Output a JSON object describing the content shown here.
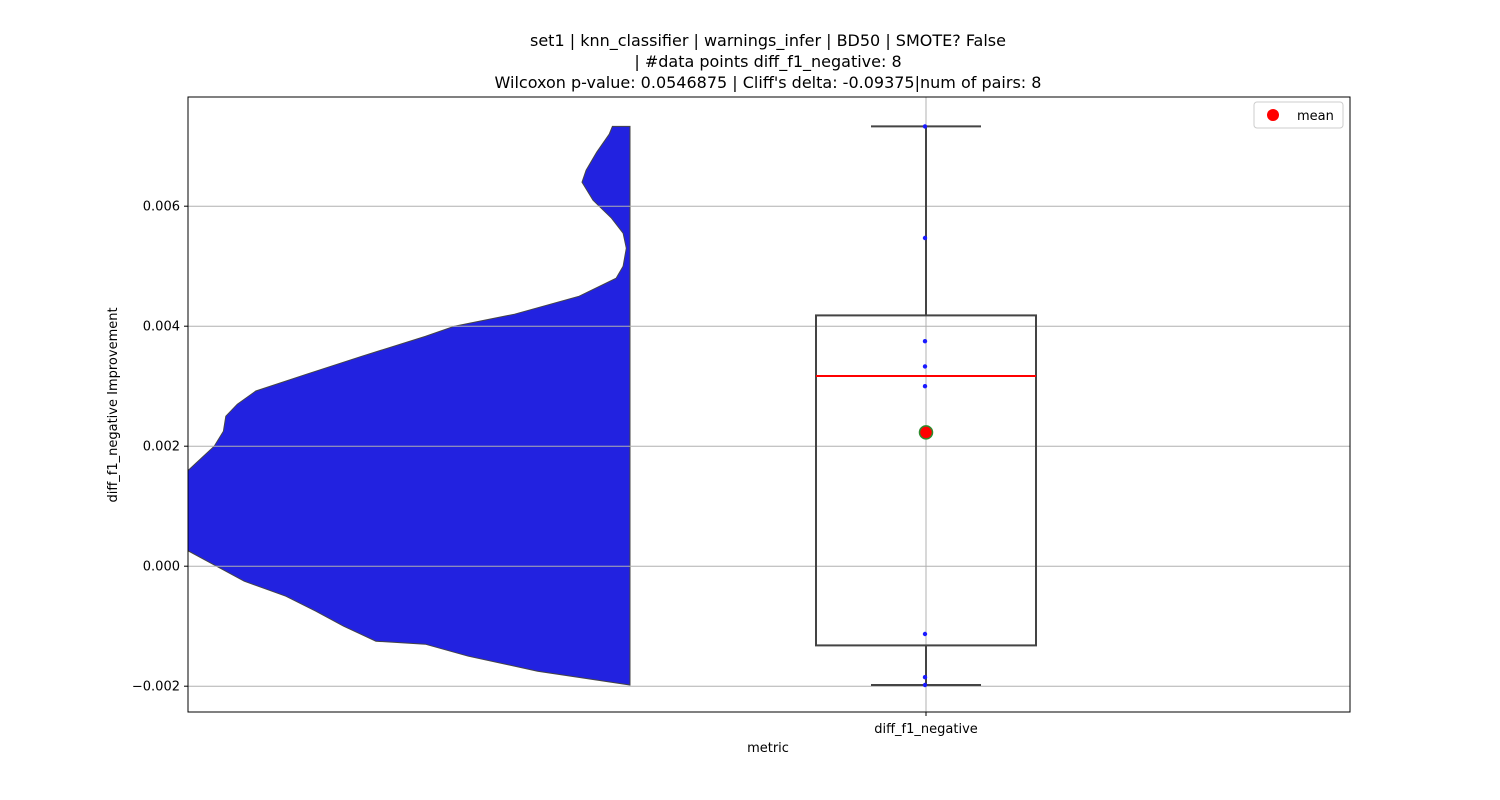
{
  "chart_data": {
    "type": "violin+box",
    "title_lines": [
      "set1 | knn_classifier | warnings_infer | BD50 | SMOTE? False",
      "| #data points diff_f1_negative: 8",
      "Wilcoxon p-value: 0.0546875 | Cliff's delta: -0.09375|num of pairs: 8"
    ],
    "xlabel": "metric",
    "ylabel": "diff_f1_negative Improvement",
    "categories": [
      "diff_f1_negative"
    ],
    "ylim": [
      -0.00243,
      0.00782
    ],
    "y_ticks": [
      -0.002,
      0.0,
      0.002,
      0.004,
      0.006
    ],
    "y_tick_labels": [
      "−0.002",
      "0.000",
      "0.002",
      "0.004",
      "0.006"
    ],
    "grid": true,
    "legend": {
      "position": "top-right",
      "entries": [
        {
          "label": "mean",
          "marker": "circle",
          "color": "#ff0000"
        }
      ]
    },
    "violin": {
      "color": "#2222e0",
      "y_range": [
        -0.00198,
        0.00733
      ],
      "density_profile": [
        [
          0.00733,
          0.038
        ],
        [
          0.0072,
          0.045
        ],
        [
          0.0069,
          0.072
        ],
        [
          0.0066,
          0.095
        ],
        [
          0.0064,
          0.104
        ],
        [
          0.0061,
          0.08
        ],
        [
          0.0058,
          0.04
        ],
        [
          0.00555,
          0.015
        ],
        [
          0.0053,
          0.008
        ],
        [
          0.005,
          0.015
        ],
        [
          0.0048,
          0.03
        ],
        [
          0.0045,
          0.11
        ],
        [
          0.0042,
          0.25
        ],
        [
          0.004,
          0.38
        ],
        [
          0.00383,
          0.443
        ],
        [
          0.0035,
          0.58
        ],
        [
          0.0032,
          0.7
        ],
        [
          0.00292,
          0.81
        ],
        [
          0.0027,
          0.85
        ],
        [
          0.0025,
          0.875
        ],
        [
          0.00225,
          0.88
        ],
        [
          0.002,
          0.9
        ],
        [
          0.00175,
          0.935
        ],
        [
          0.0015,
          0.97
        ],
        [
          0.00125,
          0.99
        ],
        [
          0.001,
          1.0
        ],
        [
          0.00075,
          0.995
        ],
        [
          0.0005,
          0.98
        ],
        [
          0.00025,
          0.955
        ],
        [
          0.0,
          0.895
        ],
        [
          -0.00025,
          0.835
        ],
        [
          -0.0005,
          0.745
        ],
        [
          -0.00075,
          0.68
        ],
        [
          -0.001,
          0.62
        ],
        [
          -0.00125,
          0.55
        ],
        [
          -0.0013,
          0.443
        ],
        [
          -0.0015,
          0.35
        ],
        [
          -0.00175,
          0.2
        ],
        [
          -0.00198,
          0.0
        ]
      ]
    },
    "box": {
      "category": "diff_f1_negative",
      "whisker_low": -0.00198,
      "q1": -0.00132,
      "median": 0.00317,
      "q3": 0.00418,
      "whisker_high": 0.00733,
      "median_color": "#ff0000",
      "mean": 0.00223
    },
    "points": [
      0.00733,
      0.00547,
      0.00375,
      0.00333,
      0.003,
      -0.00113,
      -0.00185,
      -0.00198
    ]
  }
}
